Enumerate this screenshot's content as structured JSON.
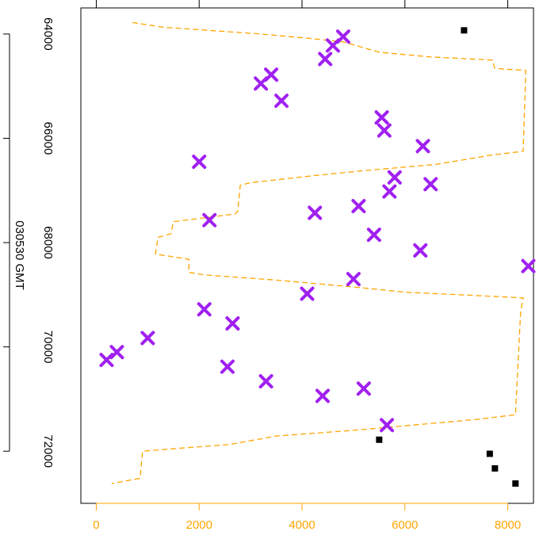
{
  "chart_data": {
    "type": "scatter",
    "title": "",
    "xlabel": "",
    "ylabel": "030530 GMT",
    "xlim": [
      -300,
      8500
    ],
    "ylim": [
      73000,
      63500
    ],
    "y_reversed": true,
    "grid": false,
    "x_ticks": [
      0,
      2000,
      4000,
      6000,
      8000
    ],
    "x_tick_labels": [
      "0",
      "2000",
      "4000",
      "6000",
      "8000"
    ],
    "y_ticks": [
      64000,
      66000,
      68000,
      70000,
      72000
    ],
    "y_tick_labels": [
      "64000",
      "66000",
      "68000",
      "70000",
      "72000"
    ],
    "colors": {
      "cross": "#A020F0",
      "square": "#000000",
      "line": "#FFA500",
      "x_axis": "#FFA500",
      "frame": "#000000"
    },
    "series": [
      {
        "marker": "cross",
        "points": [
          [
            4800,
            64050
          ],
          [
            4600,
            64220
          ],
          [
            4450,
            64480
          ],
          [
            3400,
            64780
          ],
          [
            3200,
            64950
          ],
          [
            3600,
            65280
          ],
          [
            5550,
            65600
          ],
          [
            5600,
            65850
          ],
          [
            6350,
            66150
          ],
          [
            2000,
            66450
          ],
          [
            5800,
            66750
          ],
          [
            6500,
            66880
          ],
          [
            5700,
            67020
          ],
          [
            5100,
            67300
          ],
          [
            4250,
            67430
          ],
          [
            2200,
            67570
          ],
          [
            5400,
            67850
          ],
          [
            6300,
            68150
          ],
          [
            8400,
            68450
          ],
          [
            5000,
            68700
          ],
          [
            4100,
            68980
          ],
          [
            2100,
            69280
          ],
          [
            2650,
            69550
          ],
          [
            1000,
            69830
          ],
          [
            400,
            70100
          ],
          [
            200,
            70250
          ],
          [
            2550,
            70380
          ],
          [
            3300,
            70660
          ],
          [
            5200,
            70800
          ],
          [
            4400,
            70940
          ],
          [
            5650,
            71500
          ]
        ]
      },
      {
        "marker": "square",
        "points": [
          [
            7150,
            63930
          ],
          [
            5500,
            71780
          ],
          [
            7650,
            72050
          ],
          [
            7750,
            72330
          ],
          [
            8150,
            72620
          ]
        ]
      },
      {
        "marker": "line",
        "style": "dashed",
        "points": [
          [
            700,
            63780
          ],
          [
            1300,
            63870
          ],
          [
            3200,
            64000
          ],
          [
            4100,
            64080
          ],
          [
            4800,
            64150
          ],
          [
            5500,
            64350
          ],
          [
            6500,
            64440
          ],
          [
            7700,
            64500
          ],
          [
            7750,
            64660
          ],
          [
            8350,
            64700
          ],
          [
            8300,
            66250
          ],
          [
            7700,
            66320
          ],
          [
            6600,
            66500
          ],
          [
            5200,
            66620
          ],
          [
            4200,
            66720
          ],
          [
            3000,
            66850
          ],
          [
            2800,
            66900
          ],
          [
            2750,
            67400
          ],
          [
            2700,
            67450
          ],
          [
            1500,
            67600
          ],
          [
            1450,
            67830
          ],
          [
            1200,
            67900
          ],
          [
            1150,
            68220
          ],
          [
            1800,
            68320
          ],
          [
            1800,
            68570
          ],
          [
            2100,
            68620
          ],
          [
            3500,
            68720
          ],
          [
            5000,
            68850
          ],
          [
            6000,
            68950
          ],
          [
            7500,
            69020
          ],
          [
            8300,
            69060
          ],
          [
            8250,
            69320
          ],
          [
            8150,
            71300
          ],
          [
            7400,
            71390
          ],
          [
            5000,
            71600
          ],
          [
            3500,
            71710
          ],
          [
            2600,
            71870
          ],
          [
            1800,
            71930
          ],
          [
            900,
            72000
          ],
          [
            850,
            72520
          ],
          [
            300,
            72620
          ]
        ]
      }
    ]
  }
}
